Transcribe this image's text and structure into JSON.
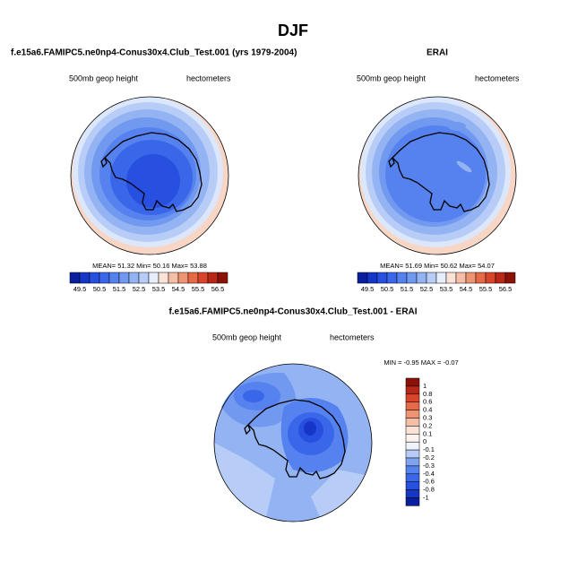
{
  "title": "DJF",
  "panels": [
    {
      "title": "f.e15a6.FAMIPC5.ne0np4-Conus30x4.Club_Test.001 (yrs 1979-2004)",
      "left_label": "500mb geop height",
      "right_label": "hectometers",
      "stats": "MEAN= 51.32  Min= 50.16  Max= 53.88",
      "colorbar": {
        "labels": [
          "49.5",
          "50.5",
          "51.5",
          "52.5",
          "53.5",
          "54.5",
          "55.5",
          "56.5"
        ],
        "colors": [
          "#0a1f9e",
          "#1636c8",
          "#2850e0",
          "#3a67ea",
          "#5582ee",
          "#7299f0",
          "#93b3f3",
          "#b7cdf7",
          "#e6eefb",
          "#fbe2d6",
          "#f6bea6",
          "#ef9472",
          "#e66a46",
          "#d8452a",
          "#b82818",
          "#8c1208"
        ]
      }
    },
    {
      "title": "ERAI",
      "left_label": "500mb geop height",
      "right_label": "hectometers",
      "stats": "MEAN= 51.69  Min= 50.62  Max= 54.07",
      "colorbar": {
        "labels": [
          "49.5",
          "50.5",
          "51.5",
          "52.5",
          "53.5",
          "54.5",
          "55.5",
          "56.5"
        ],
        "colors": [
          "#0a1f9e",
          "#1636c8",
          "#2850e0",
          "#3a67ea",
          "#5582ee",
          "#7299f0",
          "#93b3f3",
          "#b7cdf7",
          "#e6eefb",
          "#fbe2d6",
          "#f6bea6",
          "#ef9472",
          "#e66a46",
          "#d8452a",
          "#b82818",
          "#8c1208"
        ]
      }
    }
  ],
  "difference": {
    "title": "f.e15a6.FAMIPC5.ne0np4-Conus30x4.Club_Test.001 - ERAI",
    "left_label": "500mb geop height",
    "right_label": "hectometers",
    "stats": "MIN = -0.95  MAX = -0.07",
    "colorbar": {
      "labels": [
        "1",
        "0.8",
        "0.6",
        "0.4",
        "0.3",
        "0.2",
        "0.1",
        "0",
        "-0.1",
        "-0.2",
        "-0.3",
        "-0.4",
        "-0.6",
        "-0.8",
        "-1"
      ],
      "colors": [
        "#8c1208",
        "#b82818",
        "#d8452a",
        "#e66a46",
        "#ef9472",
        "#f6bea6",
        "#fbe2d6",
        "#fdf3ee",
        "#eef3fc",
        "#b7cdf7",
        "#7ea4f0",
        "#5582ee",
        "#3a67ea",
        "#2850e0",
        "#1636c8",
        "#0a1f9e"
      ]
    }
  }
}
